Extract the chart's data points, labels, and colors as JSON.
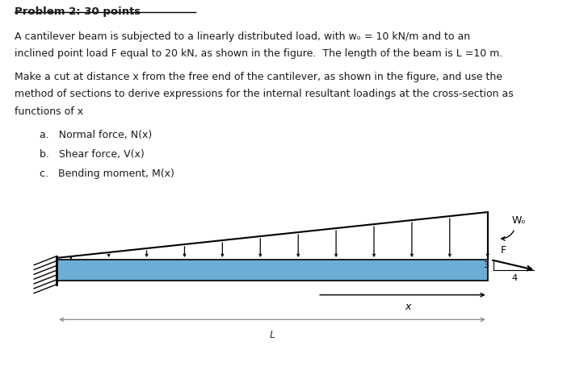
{
  "title_text": "Problem 2: 30 points",
  "p1_line1": "A cantilever beam is subjected to a linearly distributed load, with wₒ = 10 kN/m and to an",
  "p1_line2": "inclined point load F equal to 20 kN, as shown in the figure.  The length of the beam is L =10 m.",
  "p2_line1": "Make a cut at distance x from the free end of the cantilever, as shown in the figure, and use the",
  "p2_line2": "method of sections to derive expressions for the internal resultant loadings at the cross-section as",
  "p2_line3": "functions of x",
  "list_a": "a.   Normal force, N(x)",
  "list_b": "b.   Shear force, V(x)",
  "list_c": "c.   Bending moment, M(x)",
  "beam_color": "#6aaed6",
  "fig_bg": "#ffffff",
  "text_color": "#1a1a1a",
  "n_load_arrows": 12
}
